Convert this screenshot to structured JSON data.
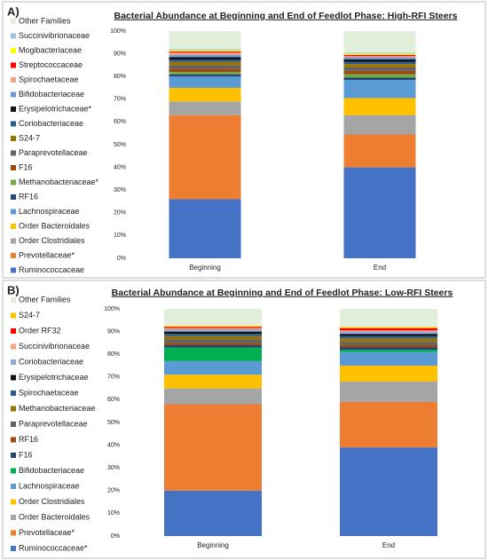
{
  "chart_data": [
    {
      "type": "stacked_bar",
      "panel_label": "A)",
      "title": "Bacterial Abundance at Beginning and End of Feedlot Phase: High-RFI Steers",
      "categories": [
        "Beginning",
        "End"
      ],
      "ylim": [
        0,
        100
      ],
      "yticks": [
        {
          "value": 0,
          "label": "0%"
        },
        {
          "value": 10,
          "label": "10%"
        },
        {
          "value": 20,
          "label": "20%"
        },
        {
          "value": 30,
          "label": "30%"
        },
        {
          "value": 40,
          "label": "40%"
        },
        {
          "value": 50,
          "label": "50%"
        },
        {
          "value": 60,
          "label": "60%"
        },
        {
          "value": 70,
          "label": "70%"
        },
        {
          "value": 80,
          "label": "80%"
        },
        {
          "value": 90,
          "label": "90%"
        },
        {
          "value": 100,
          "label": "100%"
        }
      ],
      "series": [
        {
          "name": "Ruminococcaceae",
          "color": "#4472c4",
          "values": [
            26,
            40
          ]
        },
        {
          "name": "Prevotellaceae*",
          "color": "#ed7d31",
          "values": [
            37,
            14.5
          ]
        },
        {
          "name": "Order Clostridiales",
          "color": "#a5a5a5",
          "values": [
            6,
            8.5
          ]
        },
        {
          "name": "Order Bacteroidales",
          "color": "#ffc000",
          "values": [
            6,
            7.5
          ]
        },
        {
          "name": "Lachnospiraceae",
          "color": "#5b9bd5",
          "values": [
            5,
            8
          ]
        },
        {
          "name": "RF16",
          "color": "#264478",
          "values": [
            1,
            1
          ]
        },
        {
          "name": "Methanobacteriaceae*",
          "color": "#70ad47",
          "values": [
            1,
            1.5
          ]
        },
        {
          "name": "F16",
          "color": "#9e480e",
          "values": [
            1.5,
            1.5
          ]
        },
        {
          "name": "Paraprevotellaceae",
          "color": "#636363",
          "values": [
            1.5,
            1.5
          ]
        },
        {
          "name": "S24-7",
          "color": "#997300",
          "values": [
            1.5,
            1.5
          ]
        },
        {
          "name": "Coriobacteriaceae",
          "color": "#255e91",
          "values": [
            1,
            1
          ]
        },
        {
          "name": "Erysipelotrichaceae*",
          "color": "#111111",
          "values": [
            1,
            1
          ]
        },
        {
          "name": "Bifidobacteriaceae",
          "color": "#6f9ad8",
          "values": [
            1,
            1
          ]
        },
        {
          "name": "Spirochaetaceae",
          "color": "#f4a582",
          "values": [
            1,
            0.5
          ]
        },
        {
          "name": "Streptococcaceae",
          "color": "#ff0000",
          "values": [
            0.5,
            0.5
          ]
        },
        {
          "name": "Mogibacteriaceae",
          "color": "#ffff00",
          "values": [
            0.5,
            0.5
          ]
        },
        {
          "name": "Succinivibrionaceae",
          "color": "#9dc3e6",
          "values": [
            0.5,
            0.5
          ]
        },
        {
          "name": "Other Families",
          "color": "#e2efda",
          "values": [
            8,
            9.5
          ]
        }
      ]
    },
    {
      "type": "stacked_bar",
      "panel_label": "B)",
      "title": "Bacterial Abundance at Beginning and End of Feedlot Phase: Low-RFI Steers",
      "categories": [
        "Beginning",
        "End"
      ],
      "ylim": [
        0,
        100
      ],
      "yticks": [
        {
          "value": 0,
          "label": "0%"
        },
        {
          "value": 10,
          "label": "10%"
        },
        {
          "value": 20,
          "label": "20%"
        },
        {
          "value": 30,
          "label": "30%"
        },
        {
          "value": 40,
          "label": "40%"
        },
        {
          "value": 50,
          "label": "50%"
        },
        {
          "value": 60,
          "label": "60%"
        },
        {
          "value": 70,
          "label": "70%"
        },
        {
          "value": 80,
          "label": "80%"
        },
        {
          "value": 90,
          "label": "90%"
        },
        {
          "value": 100,
          "label": "100%"
        }
      ],
      "series": [
        {
          "name": "Ruminococcaceae*",
          "color": "#4472c4",
          "values": [
            20,
            39
          ]
        },
        {
          "name": "Prevotellaceae*",
          "color": "#ed7d31",
          "values": [
            38,
            20
          ]
        },
        {
          "name": "Order Bacteroidales",
          "color": "#a5a5a5",
          "values": [
            7,
            9
          ]
        },
        {
          "name": "Order Clostridiales",
          "color": "#ffc000",
          "values": [
            6,
            7
          ]
        },
        {
          "name": "Lachnospiraceae",
          "color": "#5b9bd5",
          "values": [
            6,
            6
          ]
        },
        {
          "name": "Bifidobacteriaceae",
          "color": "#00b050",
          "values": [
            6,
            1
          ]
        },
        {
          "name": "F16",
          "color": "#264478",
          "values": [
            1,
            1
          ]
        },
        {
          "name": "RF16",
          "color": "#9e480e",
          "values": [
            1,
            1
          ]
        },
        {
          "name": "Paraprevotellaceae",
          "color": "#636363",
          "values": [
            1.5,
            1.5
          ]
        },
        {
          "name": "Methanobacteriaceae",
          "color": "#997300",
          "values": [
            1.5,
            1.5
          ]
        },
        {
          "name": "Spirochaetaceae",
          "color": "#255e91",
          "values": [
            1,
            1
          ]
        },
        {
          "name": "Erysipelotrichaceae",
          "color": "#111111",
          "values": [
            1,
            1
          ]
        },
        {
          "name": "Coriobacteriaceae",
          "color": "#8faadc",
          "values": [
            1,
            1
          ]
        },
        {
          "name": "Succinivibrionaceae",
          "color": "#f4a582",
          "values": [
            0.5,
            0.5
          ]
        },
        {
          "name": "Order RF32",
          "color": "#ff0000",
          "values": [
            0.5,
            1
          ]
        },
        {
          "name": "S24-7",
          "color": "#ffc000",
          "values": [
            0.5,
            0.5
          ]
        },
        {
          "name": "Other Families",
          "color": "#e2efda",
          "values": [
            7.5,
            8
          ]
        }
      ]
    }
  ]
}
